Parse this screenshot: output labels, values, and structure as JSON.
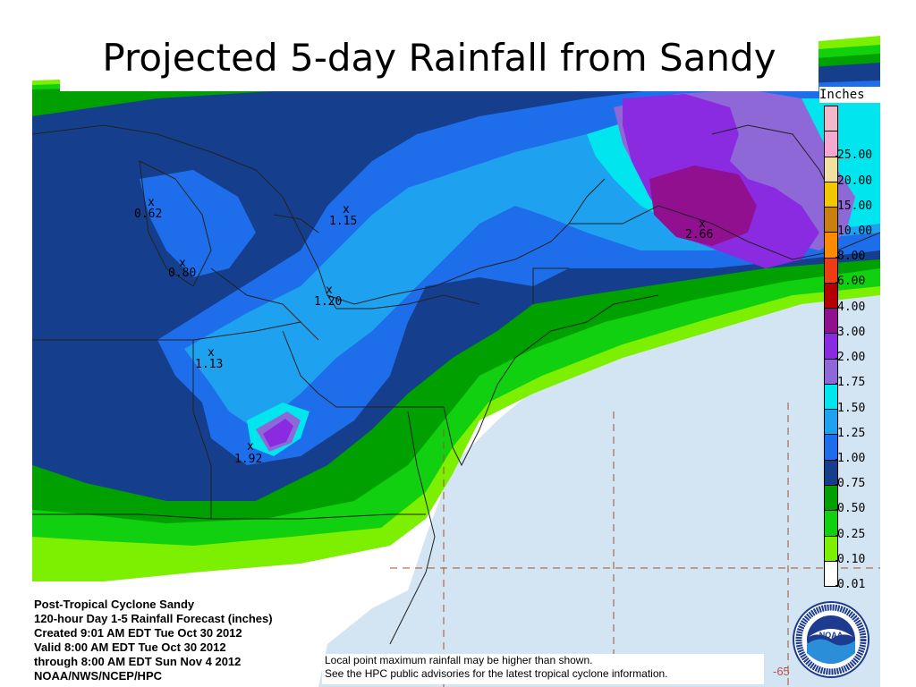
{
  "title": "Projected 5-day Rainfall from Sandy",
  "legend": {
    "title": "Inches",
    "levels": [
      {
        "label": "",
        "color": "#f5b8c8"
      },
      {
        "label": "25.00",
        "color": "#f5a8d0"
      },
      {
        "label": "20.00",
        "color": "#f2e0a0"
      },
      {
        "label": "15.00",
        "color": "#f2c800"
      },
      {
        "label": "10.00",
        "color": "#c88010"
      },
      {
        "label": "8.00",
        "color": "#ff8c00"
      },
      {
        "label": "6.00",
        "color": "#f03c14"
      },
      {
        "label": "4.00",
        "color": "#b40000"
      },
      {
        "label": "3.00",
        "color": "#901090"
      },
      {
        "label": "2.00",
        "color": "#8a2be2"
      },
      {
        "label": "1.75",
        "color": "#8f68d8"
      },
      {
        "label": "1.50",
        "color": "#00e5ee"
      },
      {
        "label": "1.25",
        "color": "#1ea2f0"
      },
      {
        "label": "1.00",
        "color": "#1e6eeb"
      },
      {
        "label": "0.75",
        "color": "#153f8c"
      },
      {
        "label": "0.50",
        "color": "#00a000"
      },
      {
        "label": "0.25",
        "color": "#10d010"
      },
      {
        "label": "0.10",
        "color": "#7cf000"
      },
      {
        "label": "0.01",
        "color": "#ffffff"
      }
    ]
  },
  "point_maxima": [
    {
      "value": "0.62"
    },
    {
      "value": "0.80"
    },
    {
      "value": "1.15"
    },
    {
      "value": "1.20"
    },
    {
      "value": "1.13"
    },
    {
      "value": "1.92"
    },
    {
      "value": "2.66"
    }
  ],
  "info": {
    "line1": "Post-Tropical Cyclone Sandy",
    "line2": "120-hour Day 1-5 Rainfall Forecast (inches)",
    "line3": "Created 9:01 AM EDT Tue Oct 30 2012",
    "line4": "Valid 8:00 AM EDT Tue Oct 30 2012",
    "line5": "through 8:00 AM EDT Sun Nov 4 2012",
    "line6": "NOAA/NWS/NCEP/HPC"
  },
  "note": {
    "line1": "Local point maximum rainfall may be higher than shown.",
    "line2": "See the HPC public advisories for the latest tropical cyclone information."
  },
  "corner_number": "-65",
  "logo": {
    "text": "NOAA"
  },
  "colors": {
    "ocean": "#d3e4f3",
    "land_dry": "#ffffff",
    "boundary": "#222222",
    "gridline": "#a0522d"
  }
}
